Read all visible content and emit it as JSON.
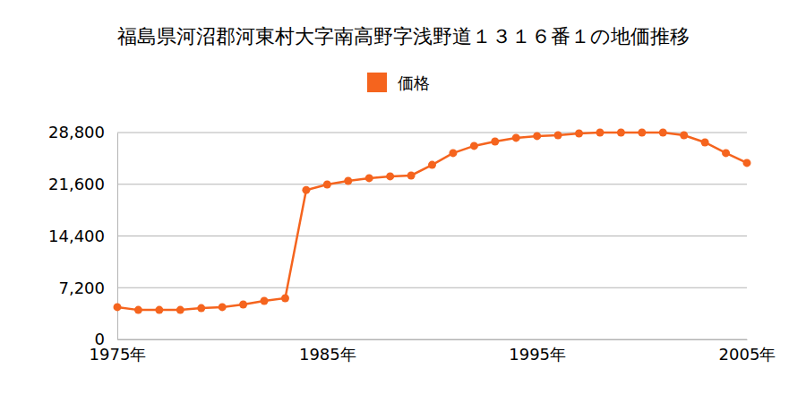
{
  "chart_data": {
    "type": "line",
    "title": "福島県河沼郡河東村大字南高野字浅野道１３１６番１の地価推移",
    "x": [
      1975,
      1976,
      1977,
      1978,
      1979,
      1980,
      1981,
      1982,
      1983,
      1984,
      1985,
      1986,
      1987,
      1988,
      1989,
      1990,
      1991,
      1992,
      1993,
      1994,
      1995,
      1996,
      1997,
      1998,
      1999,
      2000,
      2001,
      2002,
      2003,
      2004,
      2005
    ],
    "series": [
      {
        "name": "価格",
        "color": "#f5641e",
        "marker": "circle",
        "values": [
          4500,
          4100,
          4100,
          4100,
          4350,
          4500,
          4860,
          5360,
          5740,
          20800,
          21570,
          22070,
          22450,
          22700,
          22820,
          24300,
          25940,
          26940,
          27560,
          28060,
          28310,
          28430,
          28680,
          28800,
          28800,
          28800,
          28800,
          28430,
          27430,
          25940,
          24570
        ]
      }
    ],
    "xlim": [
      1975,
      2005
    ],
    "xticks": [
      {
        "value": 1975,
        "label": "1975年"
      },
      {
        "value": 1985,
        "label": "1985年"
      },
      {
        "value": 1995,
        "label": "1995年"
      },
      {
        "value": 2005,
        "label": "2005年"
      }
    ],
    "ylim": [
      0,
      28800
    ],
    "yticks": [
      0,
      {
        "value": 7200,
        "label": "7,200"
      },
      {
        "value": 14400,
        "label": "14,400"
      },
      {
        "value": 21600,
        "label": "21,600"
      },
      {
        "value": 28800,
        "label": "28,800"
      }
    ],
    "grid": true,
    "legend": "top"
  }
}
